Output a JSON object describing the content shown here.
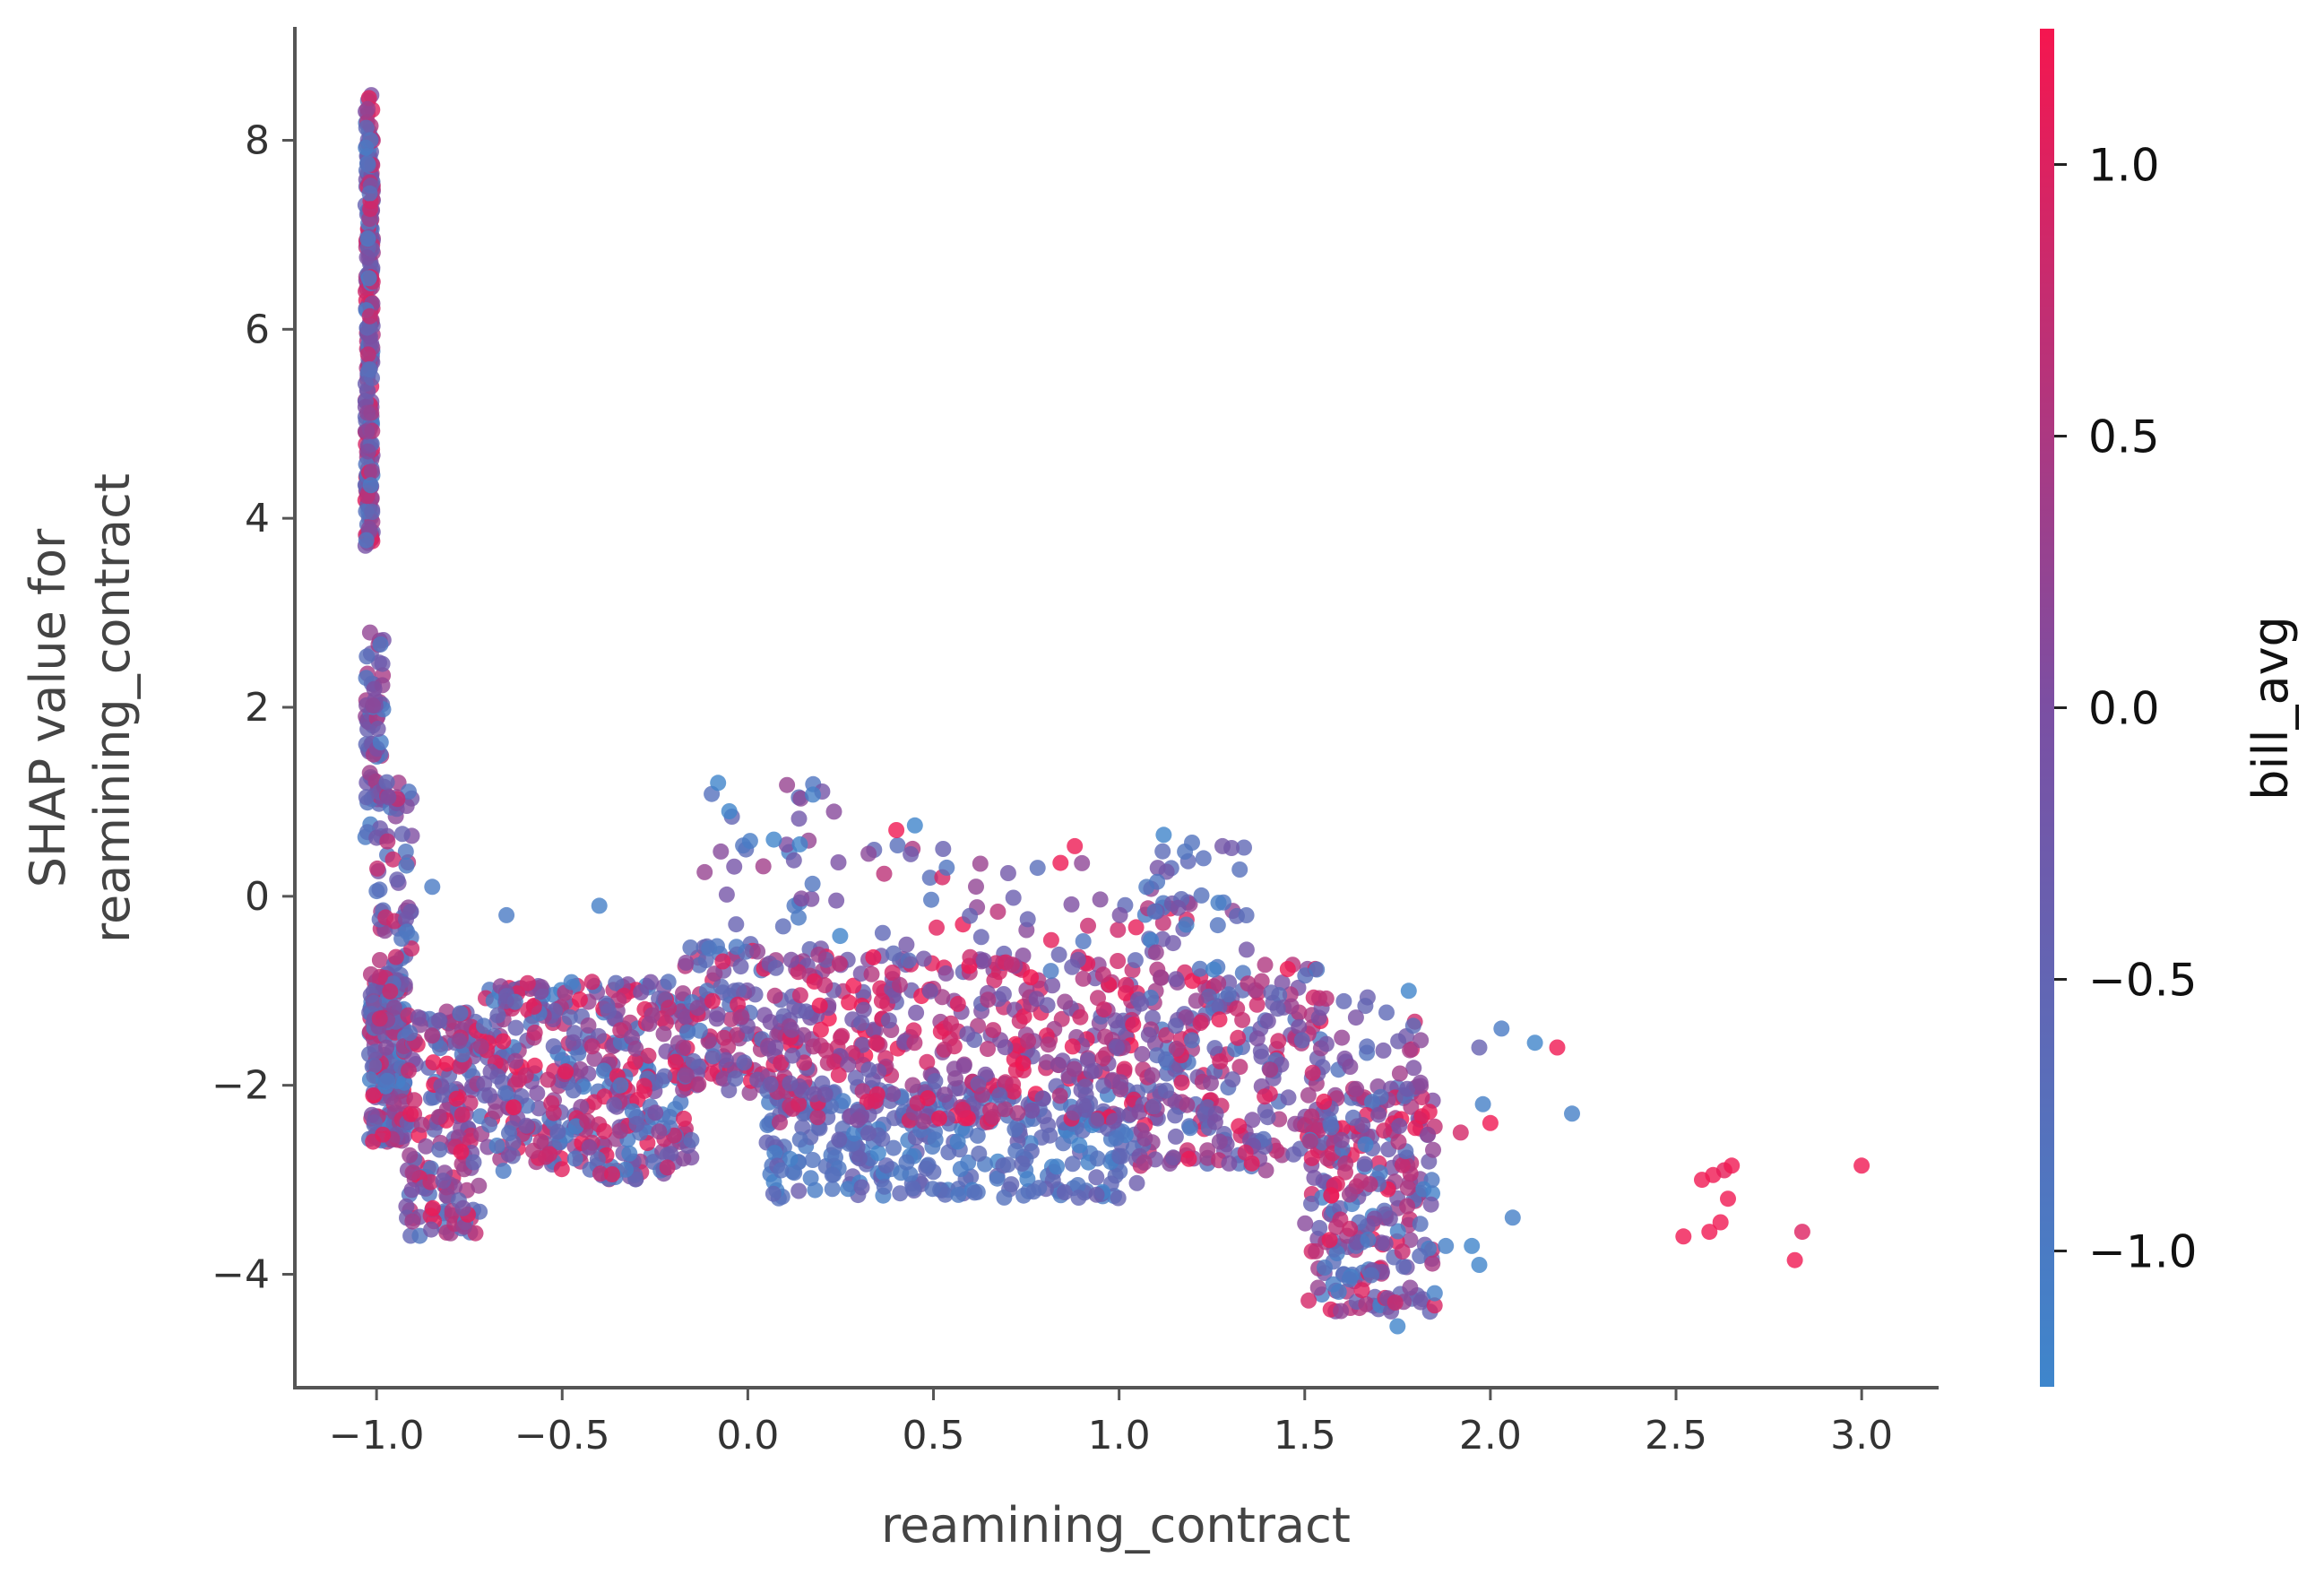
{
  "chart_data": {
    "type": "scatter",
    "title": "",
    "xlabel": "reamining_contract",
    "ylabel_lines": [
      "SHAP value for",
      "reamining_contract"
    ],
    "xlim": [
      -1.22,
      3.2
    ],
    "ylim": [
      -5.2,
      9.2
    ],
    "x_ticks": [
      -1.0,
      -0.5,
      0.0,
      0.5,
      1.0,
      1.5,
      2.0,
      2.5,
      3.0
    ],
    "x_tick_labels": [
      "−1.0",
      "−0.5",
      "0.0",
      "0.5",
      "1.0",
      "1.5",
      "2.0",
      "2.5",
      "3.0"
    ],
    "y_ticks": [
      -4,
      -2,
      0,
      2,
      4,
      6,
      8
    ],
    "y_tick_labels": [
      "−4",
      "−2",
      "0",
      "2",
      "4",
      "6",
      "8"
    ],
    "grid": false,
    "point_alpha": 0.8,
    "colorbar": {
      "label": "bill_avg",
      "range": [
        -1.25,
        1.25
      ],
      "ticks": [
        -1.0,
        -0.5,
        0.0,
        0.5,
        1.0
      ],
      "tick_labels": [
        "−1.0",
        "−0.5",
        "0.0",
        "0.5",
        "1.0"
      ],
      "color_low": "#3e86cc",
      "color_mid": "#7b4fa3",
      "color_high": "#f5164f"
    },
    "clusters": [
      {
        "n": 260,
        "x": [
          -1.03,
          -1.01
        ],
        "y": [
          3.7,
          8.5
        ],
        "c": [
          -1.1,
          1.1
        ]
      },
      {
        "n": 70,
        "x": [
          -1.03,
          -0.98
        ],
        "y": [
          0.6,
          2.8
        ],
        "c": [
          -1.1,
          0.6
        ]
      },
      {
        "n": 60,
        "x": [
          -1.0,
          -0.9
        ],
        "y": [
          -1.3,
          1.3
        ],
        "c": [
          -1.0,
          0.9
        ]
      },
      {
        "n": 200,
        "x": [
          -1.02,
          -0.92
        ],
        "y": [
          -2.6,
          -0.8
        ],
        "c": [
          -1.2,
          1.2
        ]
      },
      {
        "n": 180,
        "x": [
          -0.92,
          -0.72
        ],
        "y": [
          -3.6,
          -1.2
        ],
        "c": [
          -1.0,
          1.2
        ]
      },
      {
        "n": 420,
        "x": [
          -0.72,
          -0.15
        ],
        "y": [
          -3.0,
          -0.9
        ],
        "c": [
          -1.2,
          1.2
        ]
      },
      {
        "n": 100,
        "x": [
          -0.18,
          0.05
        ],
        "y": [
          -2.1,
          -0.5
        ],
        "c": [
          -1.0,
          1.2
        ]
      },
      {
        "n": 40,
        "x": [
          -0.12,
          0.25
        ],
        "y": [
          -0.6,
          1.2
        ],
        "c": [
          -1.2,
          0.4
        ]
      },
      {
        "n": 320,
        "x": [
          0.05,
          1.05
        ],
        "y": [
          -3.2,
          -2.0
        ],
        "c": [
          -1.2,
          -0.3
        ]
      },
      {
        "n": 420,
        "x": [
          0.05,
          1.05
        ],
        "y": [
          -2.4,
          -0.6
        ],
        "c": [
          -0.5,
          1.25
        ]
      },
      {
        "n": 50,
        "x": [
          0.3,
          1.2
        ],
        "y": [
          -0.8,
          0.6
        ],
        "c": [
          -1.0,
          1.2
        ]
      },
      {
        "n": 240,
        "x": [
          1.05,
          1.55
        ],
        "y": [
          -2.9,
          -0.7
        ],
        "c": [
          -1.0,
          1.2
        ]
      },
      {
        "n": 40,
        "x": [
          1.05,
          1.35
        ],
        "y": [
          -0.8,
          0.6
        ],
        "c": [
          -1.2,
          0.6
        ]
      },
      {
        "n": 260,
        "x": [
          1.5,
          1.85
        ],
        "y": [
          -4.4,
          -2.0
        ],
        "c": [
          -1.2,
          1.2
        ]
      },
      {
        "n": 40,
        "x": [
          1.4,
          1.82
        ],
        "y": [
          -2.2,
          -1.0
        ],
        "c": [
          -1.0,
          0.9
        ]
      }
    ],
    "outliers": [
      {
        "x": 1.82,
        "y": -3.1,
        "c": -1.1
      },
      {
        "x": 1.85,
        "y": -4.2,
        "c": -1.1
      },
      {
        "x": 1.88,
        "y": -3.7,
        "c": -1.1
      },
      {
        "x": 1.92,
        "y": -2.5,
        "c": 0.9
      },
      {
        "x": 1.95,
        "y": -3.7,
        "c": -1.2
      },
      {
        "x": 1.97,
        "y": -3.9,
        "c": -1.2
      },
      {
        "x": 1.98,
        "y": -2.2,
        "c": -1.1
      },
      {
        "x": 2.0,
        "y": -2.4,
        "c": 1.2
      },
      {
        "x": 1.97,
        "y": -1.6,
        "c": -0.4
      },
      {
        "x": 2.03,
        "y": -1.4,
        "c": -1.0
      },
      {
        "x": 2.06,
        "y": -3.4,
        "c": -1.1
      },
      {
        "x": 2.12,
        "y": -1.55,
        "c": -1.2
      },
      {
        "x": 2.18,
        "y": -1.6,
        "c": 1.2
      },
      {
        "x": 2.22,
        "y": -2.3,
        "c": -1.1
      },
      {
        "x": 2.52,
        "y": -3.6,
        "c": 1.2
      },
      {
        "x": 2.57,
        "y": -3.0,
        "c": 1.2
      },
      {
        "x": 2.59,
        "y": -3.55,
        "c": 1.2
      },
      {
        "x": 2.6,
        "y": -2.95,
        "c": 1.2
      },
      {
        "x": 2.62,
        "y": -3.45,
        "c": 1.2
      },
      {
        "x": 2.63,
        "y": -2.9,
        "c": 1.1
      },
      {
        "x": 2.64,
        "y": -3.2,
        "c": 1.2
      },
      {
        "x": 2.65,
        "y": -2.85,
        "c": 1.2
      },
      {
        "x": 2.82,
        "y": -3.85,
        "c": 1.2
      },
      {
        "x": 2.84,
        "y": -3.55,
        "c": 1.0
      },
      {
        "x": 3.0,
        "y": -2.85,
        "c": 1.2
      },
      {
        "x": -0.08,
        "y": 1.2,
        "c": -1.2
      },
      {
        "x": -0.05,
        "y": 0.9,
        "c": -1.2
      },
      {
        "x": 0.07,
        "y": 0.6,
        "c": -1.2
      },
      {
        "x": 0.14,
        "y": 0.55,
        "c": -1.2
      },
      {
        "x": 0.4,
        "y": 0.7,
        "c": 1.2
      },
      {
        "x": 0.45,
        "y": 0.75,
        "c": -1.2
      },
      {
        "x": 0.9,
        "y": 0.35,
        "c": 0.2
      },
      {
        "x": 1.12,
        "y": 0.65,
        "c": -1.2
      },
      {
        "x": 1.78,
        "y": -1.0,
        "c": -1.2
      },
      {
        "x": 1.75,
        "y": -4.55,
        "c": -1.2
      },
      {
        "x": -0.4,
        "y": -0.1,
        "c": -1.1
      },
      {
        "x": -0.65,
        "y": -0.2,
        "c": -1.0
      },
      {
        "x": -0.85,
        "y": 0.1,
        "c": -1.0
      }
    ]
  }
}
